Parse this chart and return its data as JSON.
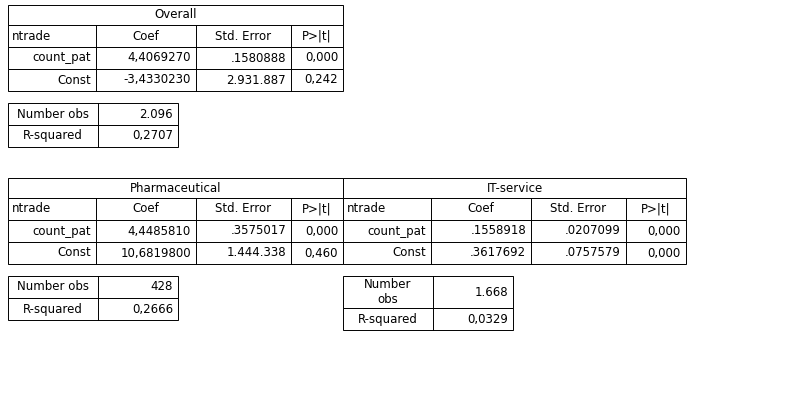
{
  "overall_title": "Overall",
  "overall_headers": [
    "ntrade",
    "Coef",
    "Std. Error",
    "P>|t|"
  ],
  "overall_rows": [
    [
      "count_pat",
      "4,4069270",
      ".1580888",
      "0,000"
    ],
    [
      "Const",
      "-3,4330230",
      "2.931.887",
      "0,242"
    ]
  ],
  "overall_stats": [
    [
      "Number obs",
      "2.096"
    ],
    [
      "R-squared",
      "0,2707"
    ]
  ],
  "pharma_title": "Pharmaceutical",
  "pharma_headers": [
    "ntrade",
    "Coef",
    "Std. Error",
    "P>|t|"
  ],
  "pharma_rows": [
    [
      "count_pat",
      "4,4485810",
      ".3575017",
      "0,000"
    ],
    [
      "Const",
      "10,6819800",
      "1.444.338",
      "0,460"
    ]
  ],
  "pharma_stats": [
    [
      "Number obs",
      "428"
    ],
    [
      "R-squared",
      "0,2666"
    ]
  ],
  "it_title": "IT-service",
  "it_headers": [
    "ntrade",
    "Coef",
    "Std. Error",
    "P>|t|"
  ],
  "it_rows": [
    [
      "count_pat",
      ".1558918",
      ".0207099",
      "0,000"
    ],
    [
      "Const",
      ".3617692",
      ".0757579",
      "0,000"
    ]
  ],
  "it_stats": [
    [
      "Number\nobs",
      "1.668"
    ],
    [
      "R-squared",
      "0,0329"
    ]
  ],
  "bg_color": "#ffffff",
  "line_color": "#000000",
  "font_size": 8.5
}
